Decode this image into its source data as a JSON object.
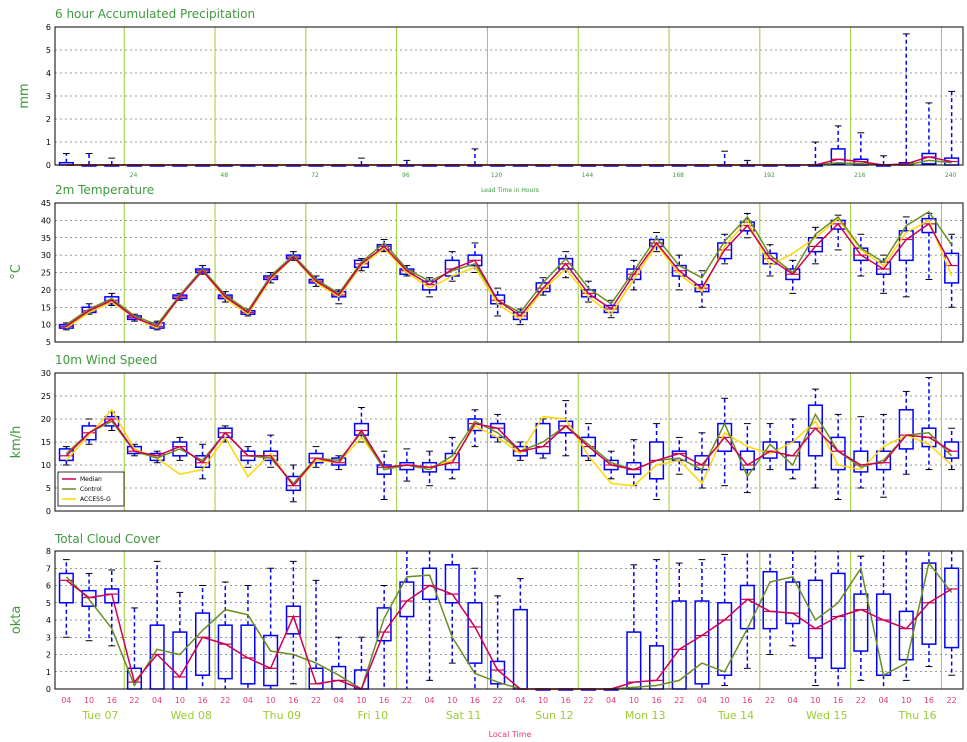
{
  "lead_axis": {
    "label": "Lead Time in Hours",
    "ticks": [
      "24",
      "48",
      "72",
      "96",
      "120",
      "144",
      "168",
      "192",
      "216",
      "240"
    ]
  },
  "local_axis": {
    "label": "Local Time",
    "hour_labels": [
      "04",
      "10",
      "16",
      "22",
      "04",
      "10",
      "16",
      "22",
      "04",
      "10",
      "16",
      "22",
      "04",
      "10",
      "16",
      "22",
      "04",
      "10",
      "16",
      "22",
      "04",
      "10",
      "16",
      "22",
      "04",
      "10",
      "16",
      "22",
      "04",
      "10",
      "16",
      "22",
      "04",
      "10",
      "16",
      "22",
      "04",
      "10",
      "16",
      "22"
    ],
    "day_labels": [
      "Tue 07",
      "Wed 08",
      "Thu 09",
      "Fri 10",
      "Sat 11",
      "Sun 12",
      "Mon 13",
      "Tue 14",
      "Wed 15",
      "Thu 16"
    ]
  },
  "colors": {
    "median": "#cc0055",
    "control": "#6b8e23",
    "access_g": "#ffd700",
    "box": "#0000ff",
    "day_line": "#9acd32",
    "title": "#3e9a3e"
  },
  "chart_data": [
    {
      "type": "box",
      "title": "6 hour Accumulated Precipitation",
      "ylabel": "mm",
      "ylim": [
        0,
        6
      ],
      "yticks": [
        "0",
        "1",
        "2",
        "3",
        "4",
        "5",
        "6"
      ],
      "grid": true,
      "series": [
        {
          "name": "Median",
          "values": [
            0,
            0,
            0,
            0,
            0,
            0,
            0,
            0,
            0,
            0,
            0,
            0,
            0,
            0,
            0,
            0,
            0,
            0,
            0,
            0,
            0,
            0,
            0,
            0,
            0,
            0,
            0,
            0,
            0,
            0,
            0,
            0,
            0,
            0,
            0.25,
            0.15,
            0,
            0.05,
            0.35,
            0.15
          ]
        },
        {
          "name": "Control",
          "values": [
            0,
            0,
            0,
            0,
            0,
            0,
            0,
            0,
            0,
            0,
            0,
            0,
            0,
            0,
            0,
            0,
            0,
            0,
            0,
            0,
            0,
            0,
            0,
            0,
            0,
            0,
            0,
            0,
            0,
            0,
            0,
            0,
            0,
            0,
            0.1,
            0.05,
            0,
            0,
            0.2,
            0.1
          ]
        }
      ],
      "boxes": {
        "q1": [
          0,
          0,
          0,
          0,
          0,
          0,
          0,
          0,
          0,
          0,
          0,
          0,
          0,
          0,
          0,
          0,
          0,
          0,
          0,
          0,
          0,
          0,
          0,
          0,
          0,
          0,
          0,
          0,
          0,
          0,
          0,
          0,
          0,
          0,
          0.05,
          0,
          0,
          0,
          0.05,
          0
        ],
        "q3": [
          0.1,
          0,
          0,
          0,
          0,
          0,
          0,
          0,
          0,
          0,
          0,
          0,
          0,
          0,
          0,
          0,
          0,
          0,
          0,
          0,
          0,
          0,
          0,
          0,
          0,
          0,
          0,
          0,
          0,
          0,
          0,
          0,
          0,
          0,
          0.7,
          0.25,
          0,
          0.1,
          0.5,
          0.3
        ],
        "max": [
          0.5,
          0.5,
          0.3,
          0,
          0,
          0,
          0,
          0,
          0,
          0,
          0,
          0,
          0,
          0.3,
          0,
          0.2,
          0,
          0,
          0.7,
          0,
          0,
          0,
          0,
          0,
          0,
          0,
          0,
          0,
          0,
          0.6,
          0.2,
          0,
          0,
          1.0,
          1.7,
          1.4,
          0.4,
          5.7,
          2.7,
          3.2
        ]
      }
    },
    {
      "type": "box",
      "title": "2m Temperature",
      "ylabel": "°C",
      "ylim": [
        5,
        45
      ],
      "yticks": [
        "5",
        "10",
        "15",
        "20",
        "25",
        "30",
        "35",
        "40",
        "45"
      ],
      "grid": true,
      "series": [
        {
          "name": "Median",
          "values": [
            9.5,
            14,
            17,
            12,
            9.5,
            18,
            25.5,
            18,
            13.5,
            23.5,
            29.5,
            22.5,
            18.5,
            27.5,
            32.5,
            25.5,
            21.5,
            26,
            28.5,
            17,
            12.5,
            20.5,
            27.5,
            19,
            14.5,
            24.5,
            33.5,
            25.5,
            20.5,
            31.5,
            38.5,
            29,
            24.5,
            32.5,
            39,
            30,
            26,
            34.5,
            39,
            27
          ]
        },
        {
          "name": "Control",
          "values": [
            10,
            14.5,
            17.5,
            12.5,
            10,
            18.5,
            26,
            18.5,
            14,
            24,
            30,
            23,
            19,
            28,
            33.5,
            26,
            22.5,
            25.5,
            27.5,
            17,
            13.5,
            22,
            29,
            20.5,
            16,
            25.5,
            35,
            27,
            23.5,
            34,
            41,
            30,
            25,
            36,
            41,
            32,
            28,
            38.5,
            42.5,
            33
          ]
        },
        {
          "name": "ACCESS-G",
          "values": [
            9,
            13.5,
            16.5,
            12,
            9,
            18,
            25.5,
            17.5,
            13,
            23,
            29.5,
            22,
            18,
            27,
            32,
            25,
            20.5,
            24,
            26.5,
            16,
            11.5,
            20,
            26,
            18,
            13,
            23,
            33,
            24.5,
            19.5,
            32.5,
            40,
            27,
            30.5,
            35,
            40.5,
            31.5,
            27,
            36.5,
            40,
            24
          ]
        }
      ],
      "boxes": {
        "q1": [
          9,
          13.5,
          16,
          11.5,
          9,
          17.5,
          25,
          17.5,
          13,
          23,
          29,
          22,
          18,
          26.5,
          31.5,
          24.5,
          20,
          24,
          27,
          16,
          11.5,
          19.5,
          26,
          18,
          13.5,
          23,
          32.5,
          24,
          19.5,
          29,
          37,
          27.5,
          23,
          31,
          37.5,
          28.5,
          24.5,
          28.5,
          36.5,
          22
        ]
      },
      "boxes_q3": [
        10,
        15,
        18,
        12.5,
        10.5,
        18.5,
        26,
        18.5,
        14,
        24,
        30,
        23,
        19.5,
        28.5,
        33,
        26,
        22.5,
        28.5,
        30,
        18.5,
        13.5,
        22,
        29,
        20,
        15.5,
        26,
        34.5,
        27,
        21.5,
        33.5,
        39.5,
        30.5,
        26,
        35,
        40,
        32,
        28,
        37,
        40.5,
        30.5
      ],
      "boxes_min": [
        8.5,
        13,
        15.5,
        11,
        8.5,
        17,
        24.5,
        16.5,
        12.5,
        22,
        28.5,
        21,
        16,
        25.5,
        31,
        24,
        18,
        22.5,
        25,
        12.5,
        10,
        18.5,
        23.5,
        16.5,
        12,
        20,
        31,
        20,
        15,
        27.5,
        35,
        24,
        19,
        27.5,
        31.5,
        24,
        19,
        18,
        23,
        15
      ],
      "boxes_max": [
        10.5,
        16,
        19,
        13,
        11,
        19,
        27,
        19.5,
        14.5,
        25,
        31,
        24,
        20,
        29,
        34.5,
        27,
        23.5,
        31,
        33.5,
        20.5,
        14.5,
        23.5,
        31,
        22.5,
        17,
        28.5,
        36.5,
        30,
        25.5,
        36,
        42,
        33,
        28.5,
        38,
        41.5,
        36,
        30,
        41,
        42,
        36
      ]
    },
    {
      "type": "box",
      "title": "10m Wind Speed",
      "ylabel": "km/h",
      "ylim": [
        0,
        30
      ],
      "yticks": [
        "0",
        "5",
        "10",
        "15",
        "20",
        "25",
        "30"
      ],
      "grid": true,
      "legend": {
        "placement": "bottom-left",
        "entries": [
          "Median",
          "Control",
          "ACCESS-G"
        ]
      },
      "series": [
        {
          "name": "Median",
          "values": [
            12,
            17,
            20,
            13,
            12,
            14,
            10.5,
            17,
            12,
            12,
            5.5,
            11.5,
            10.5,
            17.5,
            9.5,
            10,
            9.5,
            10.5,
            19,
            18,
            13,
            14,
            18.5,
            14,
            10,
            9,
            11,
            12.5,
            10,
            16,
            10,
            13,
            12,
            18,
            13,
            10,
            10.5,
            16.5,
            16,
            13
          ]
        },
        {
          "name": "Control",
          "values": [
            12.5,
            17,
            19.5,
            13,
            11.5,
            13.5,
            11,
            17,
            12,
            11.5,
            6,
            11.5,
            11,
            17,
            9,
            10,
            9,
            12,
            19.5,
            17,
            13,
            15,
            18.5,
            14.5,
            10.5,
            9,
            11,
            11.5,
            9,
            19,
            7.5,
            14.5,
            10,
            21,
            13,
            9.5,
            11,
            16.5,
            17,
            12
          ]
        },
        {
          "name": "ACCESS-G",
          "values": [
            11,
            16.5,
            22,
            13.5,
            11.5,
            8,
            9,
            16,
            7.5,
            12.5,
            5.5,
            11,
            10.5,
            16,
            9.5,
            10,
            9.5,
            11,
            18.5,
            16,
            12.5,
            20.5,
            20,
            12,
            6,
            5.5,
            10,
            11,
            6,
            17,
            14,
            12.5,
            15,
            19.5,
            10,
            9,
            14,
            16.5,
            14.5,
            10
          ]
        }
      ],
      "boxes": {
        "q1": [
          11,
          15.5,
          18.5,
          12.5,
          11,
          12,
          9.5,
          16,
          11,
          11,
          4.5,
          10.5,
          10,
          16.5,
          8,
          9,
          8.5,
          9,
          17.5,
          16,
          12,
          12.5,
          17,
          12,
          9,
          8,
          7,
          11,
          9,
          13,
          9,
          11.5,
          9,
          12,
          9,
          8.5,
          9,
          13.5,
          14,
          11.5
        ]
      },
      "boxes_q3": [
        13.5,
        18.5,
        20.5,
        14,
        12.5,
        15,
        12,
        18,
        13,
        13,
        7.5,
        12.5,
        11.5,
        19,
        10,
        10.5,
        10.5,
        12.5,
        20,
        19,
        14,
        19,
        19.5,
        16,
        11,
        10.5,
        15,
        13,
        12,
        19,
        13,
        15,
        15,
        23,
        16,
        13,
        13,
        22,
        18,
        15
      ],
      "boxes_min": [
        10,
        14.5,
        17.5,
        12,
        10.5,
        11,
        7,
        15,
        9.5,
        9.5,
        2,
        9.5,
        9,
        15,
        2.5,
        6.5,
        5.5,
        7,
        14,
        15,
        11,
        11.5,
        12,
        11,
        7,
        5.5,
        2.5,
        8,
        5,
        5.5,
        4,
        9,
        7,
        5,
        2.5,
        5,
        3,
        8,
        9,
        9
      ],
      "boxes_max": [
        14,
        20,
        21.5,
        14.5,
        13,
        16,
        14.5,
        18.5,
        14,
        16.5,
        10,
        14,
        12,
        22.5,
        13,
        13.5,
        13,
        16,
        22,
        21,
        15,
        20,
        24,
        19,
        13,
        15.5,
        19,
        16,
        17,
        24.5,
        19,
        19,
        20,
        26.5,
        21,
        20.5,
        21,
        26,
        29,
        18
      ]
    },
    {
      "type": "box",
      "title": "Total Cloud Cover",
      "ylabel": "okta",
      "ylim": [
        0,
        8
      ],
      "yticks": [
        "0",
        "1",
        "2",
        "3",
        "4",
        "5",
        "6",
        "7",
        "8"
      ],
      "grid": true,
      "series": [
        {
          "name": "Median",
          "values": [
            6.3,
            5.3,
            5.5,
            0.4,
            2,
            0.7,
            3,
            2.6,
            1.8,
            1.2,
            4.2,
            0.3,
            0.5,
            0,
            3.3,
            5.1,
            6,
            5.5,
            3.6,
            1.1,
            0,
            0,
            0,
            0,
            0,
            0.4,
            0.5,
            2.3,
            3.1,
            4,
            5.2,
            4.5,
            4.4,
            3.5,
            4.2,
            4.6,
            4,
            3.5,
            5,
            5.8
          ]
        },
        {
          "name": "Control",
          "values": [
            6.5,
            5.2,
            3.5,
            0.2,
            2.3,
            2,
            3.4,
            4.6,
            4.3,
            2.2,
            2,
            1.5,
            0.8,
            0,
            4.1,
            6.5,
            6.6,
            3,
            0.9,
            0.4,
            0,
            0,
            0,
            0,
            0,
            0.1,
            0.2,
            0.5,
            1.5,
            1,
            3.5,
            6.2,
            6.5,
            4,
            5,
            7,
            0.8,
            1.5,
            7.3,
            5.6
          ]
        }
      ],
      "boxes": {
        "q1": [
          5,
          4.8,
          5,
          0,
          0,
          0,
          0.8,
          0.6,
          0.3,
          0.2,
          3.2,
          0,
          0,
          0,
          2.8,
          4.2,
          5.2,
          5,
          1.5,
          0.3,
          0,
          0,
          0,
          0,
          0,
          0,
          0,
          0,
          0.3,
          0.8,
          3.5,
          3.5,
          3.8,
          1.8,
          1.2,
          2.2,
          0.8,
          1.7,
          2.6,
          2.4
        ]
      },
      "boxes_q3": [
        6.7,
        5.7,
        5.8,
        1.2,
        3.7,
        3.3,
        4.4,
        3.7,
        3.7,
        3.1,
        4.8,
        1.2,
        1.3,
        1.1,
        4.7,
        6.2,
        7,
        7.2,
        5,
        1.6,
        4.6,
        0,
        0,
        0,
        0,
        3.3,
        2.5,
        5.1,
        5.1,
        5,
        6,
        6.8,
        6.2,
        6.3,
        6.7,
        5.5,
        5.5,
        4.5,
        7.3,
        7
      ],
      "boxes_min": [
        3,
        2.8,
        2.5,
        0,
        0,
        0,
        0,
        0,
        0,
        0,
        0.3,
        0,
        0,
        0,
        0,
        0,
        0.5,
        1.5,
        0,
        0,
        0,
        0,
        0,
        0,
        0,
        0,
        0,
        0,
        0,
        0.2,
        1.2,
        2,
        2.5,
        0.2,
        0,
        0.5,
        0,
        0.5,
        1.3,
        0.8
      ],
      "boxes_max": [
        7.5,
        6.7,
        6.9,
        4.7,
        7.4,
        5.6,
        6,
        6.2,
        6,
        7,
        7.4,
        6.3,
        3,
        3,
        6,
        8,
        8,
        8,
        7,
        5.4,
        6.4,
        0,
        0,
        0,
        0,
        7.2,
        7.5,
        7.3,
        7.5,
        7.8,
        8,
        8,
        8,
        8,
        8,
        7.7,
        8,
        8,
        8,
        8
      ]
    }
  ]
}
